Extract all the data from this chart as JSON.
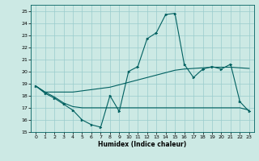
{
  "title": "",
  "xlabel": "Humidex (Indice chaleur)",
  "ylabel": "",
  "xlim": [
    -0.5,
    23.5
  ],
  "ylim": [
    15,
    25.5
  ],
  "yticks": [
    15,
    16,
    17,
    18,
    19,
    20,
    21,
    22,
    23,
    24,
    25
  ],
  "xticks": [
    0,
    1,
    2,
    3,
    4,
    5,
    6,
    7,
    8,
    9,
    10,
    11,
    12,
    13,
    14,
    15,
    16,
    17,
    18,
    19,
    20,
    21,
    22,
    23
  ],
  "bg_color": "#cce9e4",
  "line_color": "#006060",
  "grid_color": "#99cccc",
  "line1_x": [
    0,
    1,
    2,
    3,
    4,
    5,
    6,
    7,
    8,
    9,
    10,
    11,
    12,
    13,
    14,
    15,
    16,
    17,
    18,
    19,
    20,
    21,
    22,
    23
  ],
  "line1_y": [
    18.8,
    18.2,
    17.8,
    17.3,
    16.8,
    16.0,
    15.6,
    15.4,
    18.0,
    16.7,
    20.0,
    20.4,
    22.7,
    23.2,
    24.7,
    24.8,
    20.6,
    19.5,
    20.2,
    20.4,
    20.2,
    20.6,
    17.5,
    16.7
  ],
  "line2_x": [
    0,
    1,
    2,
    3,
    4,
    5,
    6,
    7,
    8,
    9,
    10,
    11,
    12,
    13,
    14,
    15,
    16,
    17,
    18,
    19,
    20,
    21,
    22,
    23
  ],
  "line2_y": [
    18.8,
    18.3,
    17.9,
    17.4,
    17.1,
    17.0,
    17.0,
    17.0,
    17.0,
    17.0,
    17.0,
    17.0,
    17.0,
    17.0,
    17.0,
    17.0,
    17.0,
    17.0,
    17.0,
    17.0,
    17.0,
    17.0,
    17.0,
    16.8
  ],
  "line3_x": [
    0,
    1,
    2,
    3,
    4,
    5,
    6,
    7,
    8,
    9,
    10,
    11,
    12,
    13,
    14,
    15,
    16,
    17,
    18,
    19,
    20,
    21,
    22,
    23
  ],
  "line3_y": [
    18.8,
    18.3,
    18.3,
    18.3,
    18.3,
    18.4,
    18.5,
    18.6,
    18.7,
    18.9,
    19.1,
    19.3,
    19.5,
    19.7,
    19.9,
    20.1,
    20.2,
    20.25,
    20.3,
    20.35,
    20.35,
    20.35,
    20.3,
    20.25
  ]
}
